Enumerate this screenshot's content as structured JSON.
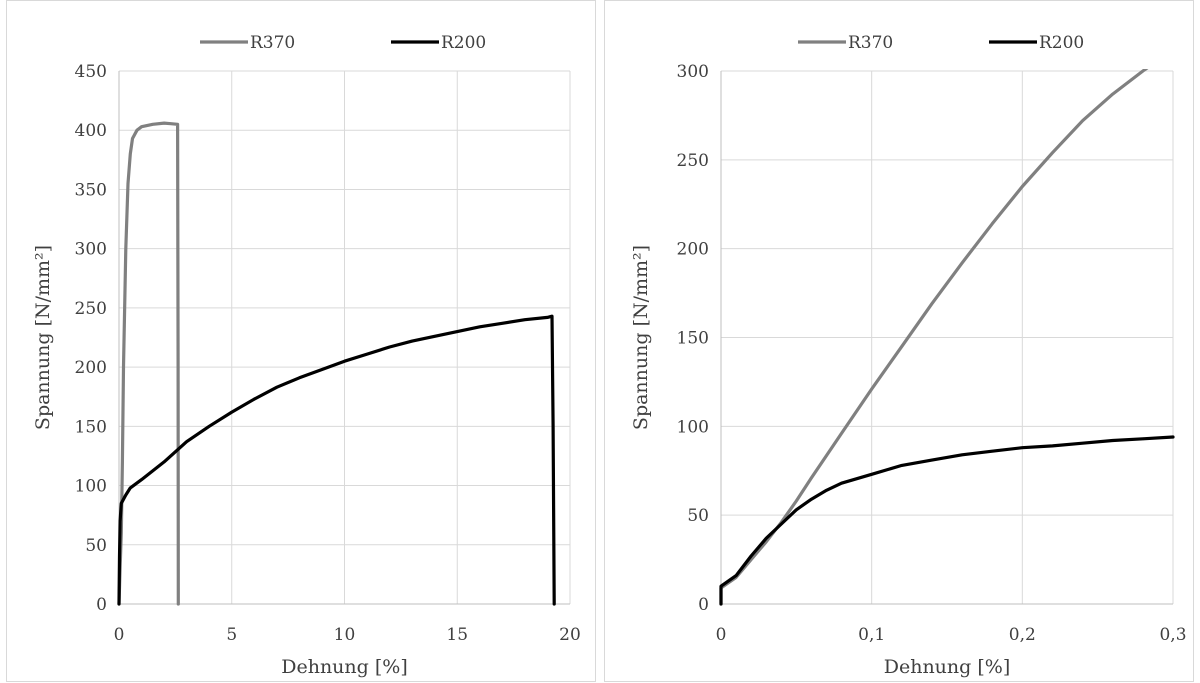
{
  "chart_data": [
    {
      "type": "line",
      "xlabel": "Dehnung [%]",
      "ylabel": "Spannung [N/mm²]",
      "xlim": [
        0,
        20
      ],
      "ylim": [
        0,
        450
      ],
      "xticks": [
        0,
        5,
        10,
        15,
        20
      ],
      "xtick_labels": [
        "0",
        "5",
        "10",
        "15",
        "20"
      ],
      "yticks": [
        0,
        50,
        100,
        150,
        200,
        250,
        300,
        350,
        400,
        450
      ],
      "ytick_labels": [
        "0",
        "50",
        "100",
        "150",
        "200",
        "250",
        "300",
        "350",
        "400",
        "450"
      ],
      "grid": true,
      "legend_position": "top-center",
      "series": [
        {
          "name": "R370",
          "color": "#808080",
          "points": [
            [
              0,
              0
            ],
            [
              0.05,
              30
            ],
            [
              0.1,
              60
            ],
            [
              0.15,
              120
            ],
            [
              0.2,
              200
            ],
            [
              0.3,
              300
            ],
            [
              0.4,
              355
            ],
            [
              0.5,
              380
            ],
            [
              0.6,
              393
            ],
            [
              0.8,
              400
            ],
            [
              1.0,
              403
            ],
            [
              1.5,
              405
            ],
            [
              2.0,
              406
            ],
            [
              2.3,
              405.5
            ],
            [
              2.6,
              405
            ],
            [
              2.62,
              200
            ],
            [
              2.63,
              0
            ]
          ]
        },
        {
          "name": "R200",
          "color": "#000000",
          "points": [
            [
              0,
              0
            ],
            [
              0.02,
              40
            ],
            [
              0.05,
              70
            ],
            [
              0.1,
              85
            ],
            [
              0.3,
              92
            ],
            [
              0.5,
              98
            ],
            [
              1,
              105
            ],
            [
              2,
              120
            ],
            [
              3,
              137
            ],
            [
              4,
              150
            ],
            [
              5,
              162
            ],
            [
              6,
              173
            ],
            [
              7,
              183
            ],
            [
              8,
              191
            ],
            [
              9,
              198
            ],
            [
              10,
              205
            ],
            [
              11,
              211
            ],
            [
              12,
              217
            ],
            [
              13,
              222
            ],
            [
              14,
              226
            ],
            [
              15,
              230
            ],
            [
              16,
              234
            ],
            [
              17,
              237
            ],
            [
              18,
              240
            ],
            [
              19,
              242
            ],
            [
              19.2,
              243
            ],
            [
              19.25,
              150
            ],
            [
              19.3,
              0
            ]
          ]
        }
      ]
    },
    {
      "type": "line",
      "xlabel": "Dehnung [%]",
      "ylabel": "Spannung [N/mm²]",
      "xlim": [
        0,
        0.3
      ],
      "ylim": [
        0,
        300
      ],
      "xticks": [
        0,
        0.1,
        0.2,
        0.3
      ],
      "xtick_labels": [
        "0",
        "0,1",
        "0,2",
        "0,3"
      ],
      "yticks": [
        0,
        50,
        100,
        150,
        200,
        250,
        300
      ],
      "ytick_labels": [
        "0",
        "50",
        "100",
        "150",
        "200",
        "250",
        "300"
      ],
      "grid": true,
      "legend_position": "top-center",
      "series": [
        {
          "name": "R370",
          "color": "#808080",
          "points": [
            [
              0,
              0
            ],
            [
              0,
              9
            ],
            [
              0.01,
              15
            ],
            [
              0.02,
              25
            ],
            [
              0.03,
              35
            ],
            [
              0.04,
              46
            ],
            [
              0.05,
              58
            ],
            [
              0.06,
              71
            ],
            [
              0.08,
              96
            ],
            [
              0.1,
              121
            ],
            [
              0.12,
              145
            ],
            [
              0.14,
              169
            ],
            [
              0.16,
              192
            ],
            [
              0.18,
              214
            ],
            [
              0.2,
              235
            ],
            [
              0.22,
              254
            ],
            [
              0.24,
              272
            ],
            [
              0.26,
              287
            ],
            [
              0.28,
              300
            ],
            [
              0.3,
              312
            ]
          ]
        },
        {
          "name": "R200",
          "color": "#000000",
          "points": [
            [
              0,
              0
            ],
            [
              0,
              10
            ],
            [
              0.01,
              16
            ],
            [
              0.02,
              27
            ],
            [
              0.03,
              37
            ],
            [
              0.04,
              45
            ],
            [
              0.05,
              53
            ],
            [
              0.06,
              59
            ],
            [
              0.07,
              64
            ],
            [
              0.08,
              68
            ],
            [
              0.1,
              73
            ],
            [
              0.12,
              78
            ],
            [
              0.14,
              81
            ],
            [
              0.16,
              84
            ],
            [
              0.18,
              86
            ],
            [
              0.2,
              88
            ],
            [
              0.22,
              89
            ],
            [
              0.24,
              90.5
            ],
            [
              0.26,
              92
            ],
            [
              0.28,
              93
            ],
            [
              0.3,
              94
            ]
          ]
        }
      ]
    }
  ]
}
